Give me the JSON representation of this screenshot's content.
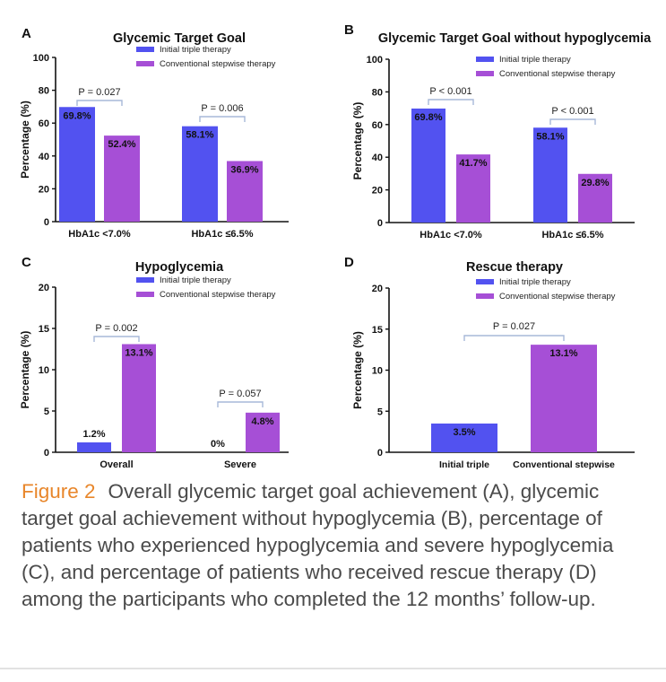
{
  "legend": {
    "initial_label": "Initial triple therapy",
    "conventional_label": "Conventional stepwise therapy"
  },
  "colors": {
    "initial": "#5252f0",
    "conventional": "#a64fd6",
    "bracket": "#a7b8d8",
    "accent": "#e8862a"
  },
  "chart_data": [
    {
      "panel": "A",
      "type": "bar",
      "title": "Glycemic Target Goal",
      "ylabel": "Percentage (%)",
      "ylim": [
        0,
        100
      ],
      "yticks": [
        0,
        20,
        40,
        60,
        80,
        100
      ],
      "categories": [
        "HbA1c <7.0%",
        "HbA1c ≤6.5%"
      ],
      "series": [
        {
          "name": "Initial triple therapy",
          "values": [
            69.8,
            58.1
          ],
          "labels": [
            "69.8%",
            "58.1%"
          ]
        },
        {
          "name": "Conventional stepwise therapy",
          "values": [
            52.4,
            36.9
          ],
          "labels": [
            "52.4%",
            "36.9%"
          ]
        }
      ],
      "pvalues": [
        "P = 0.027",
        "P = 0.006"
      ],
      "legend_position": "top-right"
    },
    {
      "panel": "B",
      "type": "bar",
      "title": "Glycemic Target Goal without hypoglycemia",
      "ylabel": "Percentage (%)",
      "ylim": [
        0,
        100
      ],
      "yticks": [
        0,
        20,
        40,
        60,
        80,
        100
      ],
      "categories": [
        "HbA1c <7.0%",
        "HbA1c ≤6.5%"
      ],
      "series": [
        {
          "name": "Initial triple therapy",
          "values": [
            69.8,
            58.1
          ],
          "labels": [
            "69.8%",
            "58.1%"
          ]
        },
        {
          "name": "Conventional stepwise therapy",
          "values": [
            41.7,
            29.8
          ],
          "labels": [
            "41.7%",
            "29.8%"
          ]
        }
      ],
      "pvalues": [
        "P < 0.001",
        "P < 0.001"
      ],
      "legend_position": "top-right"
    },
    {
      "panel": "C",
      "type": "bar",
      "title": "Hypoglycemia",
      "ylabel": "Percentage (%)",
      "ylim": [
        0,
        20
      ],
      "yticks": [
        0,
        5,
        10,
        15,
        20
      ],
      "categories": [
        "Overall",
        "Severe"
      ],
      "series": [
        {
          "name": "Initial triple therapy",
          "values": [
            1.2,
            0
          ],
          "labels": [
            "1.2%",
            "0%"
          ]
        },
        {
          "name": "Conventional stepwise therapy",
          "values": [
            13.1,
            4.8
          ],
          "labels": [
            "13.1%",
            "4.8%"
          ]
        }
      ],
      "pvalues": [
        "P = 0.002",
        "P = 0.057"
      ],
      "legend_position": "top-right"
    },
    {
      "panel": "D",
      "type": "bar",
      "title": "Rescue therapy",
      "ylabel": "Percentage (%)",
      "ylim": [
        0,
        20
      ],
      "yticks": [
        0,
        5,
        10,
        15,
        20
      ],
      "categories": [
        "Initial triple",
        "Conventional stepwise"
      ],
      "values": [
        3.5,
        13.1
      ],
      "labels": [
        "3.5%",
        "13.1%"
      ],
      "pvalue": "P = 0.027",
      "legend_position": "top-right"
    }
  ],
  "caption": {
    "label": "Figure 2",
    "text": "Overall glycemic target goal achievement (A), glycemic target goal achievement without hypoglycemia (B), percentage of patients who experienced hypoglycemia and severe hypoglycemia (C), and percentage of patients who received rescue therapy (D) among the participants who completed the 12 months’ follow-up."
  }
}
